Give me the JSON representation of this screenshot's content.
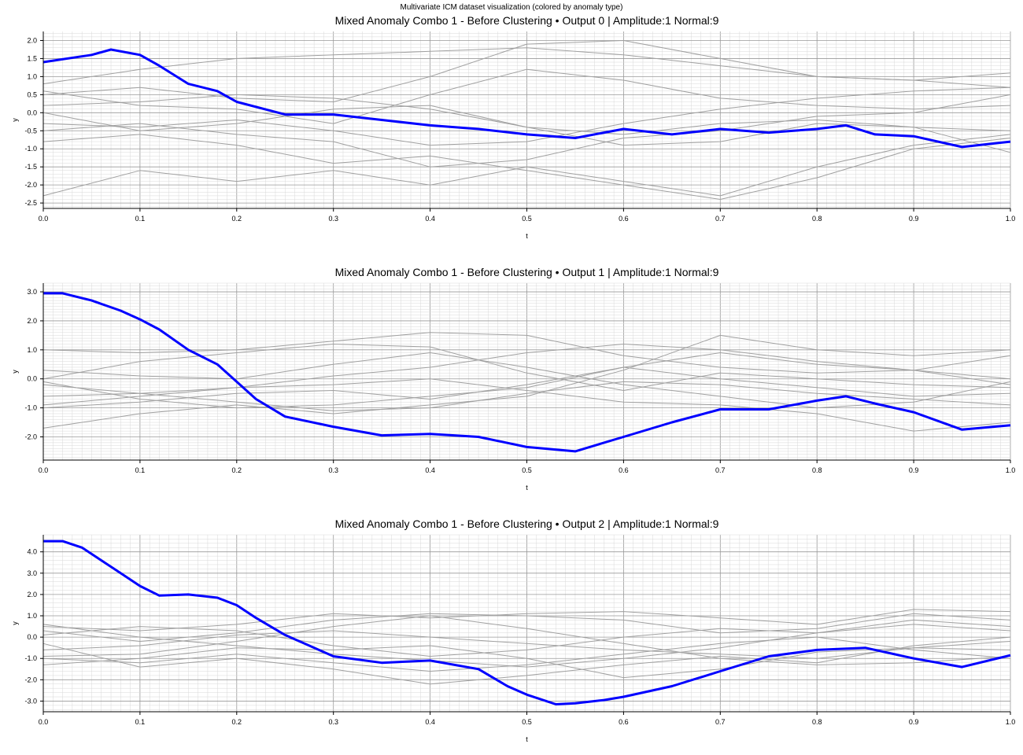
{
  "suptitle": "Multivariate ICM dataset visualization (colored by anomaly type)",
  "colors": {
    "anomaly": "#0000ff",
    "normal": "#a0a0a0",
    "grid_major": "#999999",
    "grid_minor": "#d8d8d8"
  },
  "chart_data": [
    {
      "type": "line",
      "title": "Mixed Anomaly Combo 1 - Before Clustering • Output 0  |  Amplitude:1  Normal:9",
      "xlabel": "t",
      "ylabel": "y",
      "xlim": [
        0,
        1
      ],
      "ylim": [
        -2.65,
        2.25
      ],
      "xticks": [
        "0.0",
        "0.1",
        "0.2",
        "0.3",
        "0.4",
        "0.5",
        "0.6",
        "0.7",
        "0.8",
        "0.9",
        "1.0"
      ],
      "yticks": [
        "2.0",
        "1.5",
        "1.0",
        "0.5",
        "0.0",
        "-0.5",
        "-1.0",
        "-1.5",
        "-2.0",
        "-2.5"
      ],
      "grid": true,
      "series": [
        {
          "kind": "anomaly",
          "x": [
            0,
            0.05,
            0.07,
            0.1,
            0.12,
            0.15,
            0.18,
            0.2,
            0.25,
            0.3,
            0.35,
            0.4,
            0.45,
            0.5,
            0.55,
            0.6,
            0.65,
            0.7,
            0.75,
            0.8,
            0.83,
            0.86,
            0.9,
            0.95,
            1.0
          ],
          "y": [
            1.4,
            1.6,
            1.75,
            1.6,
            1.3,
            0.8,
            0.6,
            0.3,
            -0.05,
            -0.05,
            -0.2,
            -0.35,
            -0.45,
            -0.6,
            -0.7,
            -0.45,
            -0.6,
            -0.45,
            -0.55,
            -0.45,
            -0.35,
            -0.6,
            -0.65,
            -0.95,
            -0.8
          ]
        },
        {
          "kind": "normal",
          "x": [
            0,
            0.1,
            0.2,
            0.3,
            0.4,
            0.5,
            0.6,
            0.7,
            0.8,
            0.9,
            1.0
          ],
          "y": [
            0.8,
            1.2,
            1.5,
            1.6,
            1.7,
            1.8,
            1.6,
            1.3,
            1.0,
            0.9,
            0.7
          ]
        },
        {
          "kind": "normal",
          "x": [
            0,
            0.1,
            0.2,
            0.3,
            0.4,
            0.5,
            0.6,
            0.7,
            0.8,
            0.9,
            1.0
          ],
          "y": [
            -2.3,
            -1.6,
            -1.9,
            -1.6,
            -2.0,
            -1.5,
            -1.9,
            -2.3,
            -1.5,
            -0.9,
            -0.6
          ]
        },
        {
          "kind": "normal",
          "x": [
            0,
            0.1,
            0.2,
            0.3,
            0.4,
            0.5,
            0.6,
            0.7,
            0.8,
            0.9,
            1.0
          ],
          "y": [
            0.5,
            0.7,
            0.4,
            0.3,
            1.0,
            1.9,
            2.0,
            1.5,
            1.0,
            0.9,
            1.1
          ]
        },
        {
          "kind": "normal",
          "x": [
            0,
            0.1,
            0.2,
            0.3,
            0.4,
            0.5,
            0.6,
            0.7,
            0.8,
            0.9,
            1.0
          ],
          "y": [
            0.2,
            0.3,
            0.5,
            0.4,
            0.1,
            -0.4,
            -0.9,
            -0.8,
            -0.3,
            -0.4,
            -0.5
          ]
        },
        {
          "kind": "normal",
          "x": [
            0,
            0.1,
            0.2,
            0.3,
            0.4,
            0.5,
            0.6,
            0.7,
            0.8,
            0.9,
            1.0
          ],
          "y": [
            -0.8,
            -0.6,
            -0.9,
            -1.4,
            -1.2,
            -1.6,
            -2.0,
            -2.4,
            -1.8,
            -1.0,
            -0.7
          ]
        },
        {
          "kind": "normal",
          "x": [
            0,
            0.1,
            0.2,
            0.3,
            0.4,
            0.5,
            0.6,
            0.7,
            0.8,
            0.9,
            1.0
          ],
          "y": [
            0.6,
            0.2,
            0.1,
            -0.3,
            0.5,
            1.2,
            0.9,
            0.4,
            0.2,
            0.1,
            0.2
          ]
        },
        {
          "kind": "normal",
          "x": [
            0,
            0.1,
            0.2,
            0.3,
            0.4,
            0.5,
            0.6,
            0.7,
            0.8,
            0.9,
            1.0
          ],
          "y": [
            -0.3,
            -0.4,
            -0.2,
            -0.5,
            -0.9,
            -0.8,
            -0.3,
            0.1,
            0.4,
            0.6,
            0.7
          ]
        },
        {
          "kind": "normal",
          "x": [
            0,
            0.1,
            0.2,
            0.3,
            0.4,
            0.5,
            0.6,
            0.7,
            0.8,
            0.9,
            1.0
          ],
          "y": [
            0.0,
            -0.5,
            -0.3,
            0.1,
            0.2,
            -0.4,
            -0.6,
            -0.3,
            -0.2,
            -0.4,
            -1.1
          ]
        },
        {
          "kind": "normal",
          "x": [
            0,
            0.1,
            0.2,
            0.3,
            0.4,
            0.5,
            0.6,
            0.7,
            0.8,
            0.9,
            1.0
          ],
          "y": [
            -0.5,
            -0.3,
            -0.6,
            -0.8,
            -1.5,
            -1.3,
            -0.7,
            -0.5,
            -0.1,
            0.0,
            0.5
          ]
        }
      ]
    },
    {
      "type": "line",
      "title": "Mixed Anomaly Combo 1 - Before Clustering • Output 1  |  Amplitude:1  Normal:9",
      "xlabel": "t",
      "ylabel": "y",
      "xlim": [
        0,
        1
      ],
      "ylim": [
        -2.8,
        3.3
      ],
      "xticks": [
        "0.0",
        "0.1",
        "0.2",
        "0.3",
        "0.4",
        "0.5",
        "0.6",
        "0.7",
        "0.8",
        "0.9",
        "1.0"
      ],
      "yticks": [
        "3.0",
        "2.0",
        "1.0",
        "0.0",
        "-1.0",
        "-2.0"
      ],
      "grid": true,
      "series": [
        {
          "kind": "anomaly",
          "x": [
            0,
            0.02,
            0.05,
            0.08,
            0.1,
            0.12,
            0.15,
            0.18,
            0.2,
            0.22,
            0.25,
            0.3,
            0.35,
            0.4,
            0.45,
            0.5,
            0.55,
            0.6,
            0.65,
            0.7,
            0.75,
            0.8,
            0.83,
            0.86,
            0.9,
            0.95,
            1.0
          ],
          "y": [
            2.95,
            2.95,
            2.7,
            2.35,
            2.05,
            1.7,
            1.0,
            0.5,
            -0.1,
            -0.7,
            -1.3,
            -1.65,
            -1.95,
            -1.9,
            -2.0,
            -2.35,
            -2.5,
            -2.0,
            -1.5,
            -1.05,
            -1.05,
            -0.75,
            -0.6,
            -0.85,
            -1.15,
            -1.75,
            -1.6
          ]
        },
        {
          "kind": "normal",
          "x": [
            0,
            0.1,
            0.2,
            0.3,
            0.4,
            0.5,
            0.6,
            0.7,
            0.8,
            0.9,
            1.0
          ],
          "y": [
            1.0,
            0.9,
            1.0,
            1.3,
            1.6,
            1.5,
            0.8,
            0.4,
            0.2,
            0.3,
            0.0
          ]
        },
        {
          "kind": "normal",
          "x": [
            0,
            0.1,
            0.2,
            0.3,
            0.4,
            0.5,
            0.6,
            0.7,
            0.8,
            0.9,
            1.0
          ],
          "y": [
            -1.7,
            -1.2,
            -0.9,
            -1.2,
            -0.9,
            -0.6,
            0.3,
            1.5,
            1.0,
            0.8,
            1.0
          ]
        },
        {
          "kind": "normal",
          "x": [
            0,
            0.1,
            0.2,
            0.3,
            0.4,
            0.5,
            0.6,
            0.7,
            0.8,
            0.9,
            1.0
          ],
          "y": [
            0.0,
            0.6,
            0.9,
            1.2,
            1.1,
            0.2,
            -0.4,
            0.2,
            0.0,
            -0.2,
            -0.3
          ]
        },
        {
          "kind": "normal",
          "x": [
            0,
            0.1,
            0.2,
            0.3,
            0.4,
            0.5,
            0.6,
            0.7,
            0.8,
            0.9,
            1.0
          ],
          "y": [
            -0.6,
            -0.5,
            -0.3,
            -0.2,
            0.0,
            -0.4,
            -0.8,
            -0.9,
            -1.2,
            -1.8,
            -1.5
          ]
        },
        {
          "kind": "normal",
          "x": [
            0,
            0.1,
            0.2,
            0.3,
            0.4,
            0.5,
            0.6,
            0.7,
            0.8,
            0.9,
            1.0
          ],
          "y": [
            -0.1,
            -0.7,
            -1.0,
            -0.9,
            -0.6,
            -0.3,
            0.4,
            0.9,
            0.5,
            0.3,
            0.8
          ]
        },
        {
          "kind": "normal",
          "x": [
            0,
            0.1,
            0.2,
            0.3,
            0.4,
            0.5,
            0.6,
            0.7,
            0.8,
            0.9,
            1.0
          ],
          "y": [
            -0.9,
            -0.6,
            -0.3,
            0.1,
            0.4,
            0.9,
            1.2,
            1.0,
            0.6,
            0.3,
            -0.2
          ]
        },
        {
          "kind": "normal",
          "x": [
            0,
            0.1,
            0.2,
            0.3,
            0.4,
            0.5,
            0.6,
            0.7,
            0.8,
            0.9,
            1.0
          ],
          "y": [
            -0.2,
            -0.5,
            -0.8,
            -1.1,
            -1.0,
            -0.5,
            -0.1,
            -0.2,
            -0.5,
            -0.7,
            -0.9
          ]
        },
        {
          "kind": "normal",
          "x": [
            0,
            0.1,
            0.2,
            0.3,
            0.4,
            0.5,
            0.6,
            0.7,
            0.8,
            0.9,
            1.0
          ],
          "y": [
            -1.0,
            -0.8,
            -0.5,
            -0.4,
            -0.7,
            -0.2,
            0.4,
            0.0,
            -0.3,
            -0.6,
            -0.5
          ]
        },
        {
          "kind": "normal",
          "x": [
            0,
            0.1,
            0.2,
            0.3,
            0.4,
            0.5,
            0.6,
            0.7,
            0.8,
            0.9,
            1.0
          ],
          "y": [
            0.3,
            0.1,
            0.0,
            0.5,
            0.9,
            0.4,
            -0.2,
            -0.6,
            -1.0,
            -0.8,
            -0.1
          ]
        }
      ]
    },
    {
      "type": "line",
      "title": "Mixed Anomaly Combo 1 - Before Clustering • Output 2  |  Amplitude:1  Normal:9",
      "xlabel": "t",
      "ylabel": "y",
      "xlim": [
        0,
        1
      ],
      "ylim": [
        -3.5,
        4.8
      ],
      "xticks": [
        "0.0",
        "0.1",
        "0.2",
        "0.3",
        "0.4",
        "0.5",
        "0.6",
        "0.7",
        "0.8",
        "0.9",
        "1.0"
      ],
      "yticks": [
        "4.0",
        "3.0",
        "2.0",
        "1.0",
        "0.0",
        "-1.0",
        "-2.0",
        "-3.0"
      ],
      "grid": true,
      "series": [
        {
          "kind": "anomaly",
          "x": [
            0,
            0.02,
            0.04,
            0.06,
            0.08,
            0.1,
            0.12,
            0.15,
            0.18,
            0.2,
            0.22,
            0.25,
            0.3,
            0.35,
            0.4,
            0.45,
            0.48,
            0.5,
            0.53,
            0.55,
            0.58,
            0.6,
            0.65,
            0.7,
            0.75,
            0.8,
            0.85,
            0.9,
            0.95,
            1.0
          ],
          "y": [
            4.5,
            4.5,
            4.2,
            3.6,
            3.0,
            2.4,
            1.95,
            2.0,
            1.85,
            1.5,
            0.9,
            0.1,
            -0.9,
            -1.2,
            -1.1,
            -1.5,
            -2.3,
            -2.7,
            -3.15,
            -3.1,
            -2.95,
            -2.8,
            -2.3,
            -1.6,
            -0.9,
            -0.6,
            -0.5,
            -1.0,
            -1.4,
            -0.85
          ]
        },
        {
          "kind": "normal",
          "x": [
            0,
            0.1,
            0.2,
            0.3,
            0.4,
            0.5,
            0.6,
            0.7,
            0.8,
            0.9,
            1.0
          ],
          "y": [
            0.5,
            0.3,
            0.6,
            1.1,
            0.9,
            1.1,
            1.2,
            0.9,
            0.6,
            1.3,
            1.2
          ]
        },
        {
          "kind": "normal",
          "x": [
            0,
            0.1,
            0.2,
            0.3,
            0.4,
            0.5,
            0.6,
            0.7,
            0.8,
            0.9,
            1.0
          ],
          "y": [
            -0.9,
            -0.8,
            -0.2,
            0.5,
            1.0,
            0.4,
            -0.3,
            -1.0,
            -1.3,
            -1.2,
            -0.9
          ]
        },
        {
          "kind": "normal",
          "x": [
            0,
            0.1,
            0.2,
            0.3,
            0.4,
            0.5,
            0.6,
            0.7,
            0.8,
            0.9,
            1.0
          ],
          "y": [
            0.1,
            0.5,
            0.3,
            -0.4,
            -0.9,
            -0.6,
            0.0,
            0.4,
            0.2,
            0.8,
            0.5
          ]
        },
        {
          "kind": "normal",
          "x": [
            0,
            0.1,
            0.2,
            0.3,
            0.4,
            0.5,
            0.6,
            0.7,
            0.8,
            0.9,
            1.0
          ],
          "y": [
            -0.3,
            -1.4,
            -1.0,
            -1.5,
            -2.2,
            -1.8,
            -1.3,
            -0.9,
            -1.2,
            -0.4,
            0.0
          ]
        },
        {
          "kind": "normal",
          "x": [
            0,
            0.1,
            0.2,
            0.3,
            0.4,
            0.5,
            0.6,
            0.7,
            0.8,
            0.9,
            1.0
          ],
          "y": [
            0.3,
            -0.2,
            0.2,
            0.8,
            1.1,
            1.0,
            0.8,
            0.2,
            0.4,
            1.1,
            0.8
          ]
        },
        {
          "kind": "normal",
          "x": [
            0,
            0.1,
            0.2,
            0.3,
            0.4,
            0.5,
            0.6,
            0.7,
            0.8,
            0.9,
            1.0
          ],
          "y": [
            -1.3,
            -1.0,
            -0.5,
            -0.6,
            -0.4,
            -1.0,
            -1.9,
            -1.5,
            -0.7,
            -0.5,
            -0.6
          ]
        },
        {
          "kind": "normal",
          "x": [
            0,
            0.1,
            0.2,
            0.3,
            0.4,
            0.5,
            0.6,
            0.7,
            0.8,
            0.9,
            1.0
          ],
          "y": [
            0.6,
            0.0,
            -0.4,
            -0.8,
            -1.1,
            -1.4,
            -1.0,
            -0.5,
            0.2,
            0.6,
            0.3
          ]
        },
        {
          "kind": "normal",
          "x": [
            0,
            0.1,
            0.2,
            0.3,
            0.4,
            0.5,
            0.6,
            0.7,
            0.8,
            0.9,
            1.0
          ],
          "y": [
            -0.6,
            -0.4,
            0.1,
            0.3,
            0.0,
            -0.3,
            -0.6,
            -0.8,
            -1.0,
            -0.5,
            -0.2
          ]
        },
        {
          "kind": "normal",
          "x": [
            0,
            0.1,
            0.2,
            0.3,
            0.4,
            0.5,
            0.6,
            0.7,
            0.8,
            0.9,
            1.0
          ],
          "y": [
            -1.0,
            -1.2,
            -0.8,
            -1.2,
            -1.6,
            -1.3,
            -0.8,
            -0.3,
            0.0,
            -0.6,
            -1.0
          ]
        }
      ]
    }
  ]
}
